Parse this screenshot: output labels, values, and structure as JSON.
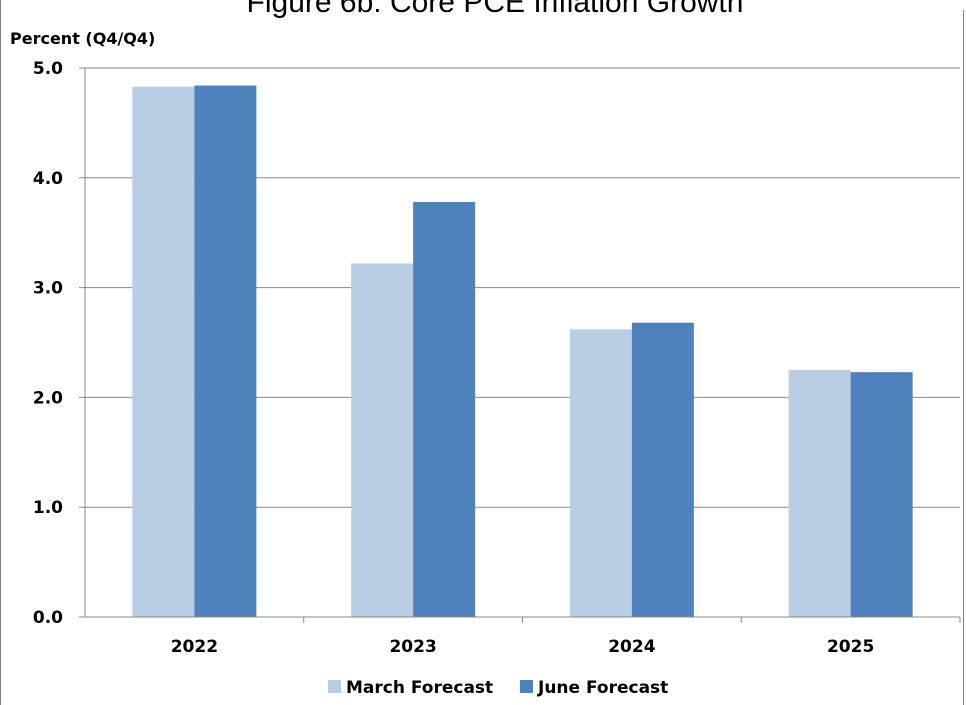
{
  "chart_data": {
    "type": "bar",
    "title": "Figure 6b: Core PCE Inflation Growth",
    "ylabel": "Percent (Q4/Q4)",
    "xlabel": "",
    "ylim": [
      0,
      5
    ],
    "yticks": [
      "0.0",
      "1.0",
      "2.0",
      "3.0",
      "4.0",
      "5.0"
    ],
    "categories": [
      "2022",
      "2023",
      "2024",
      "2025"
    ],
    "series": [
      {
        "name": "March Forecast",
        "color": "#b9cde5",
        "values": [
          4.83,
          3.22,
          2.62,
          2.25
        ]
      },
      {
        "name": "June Forecast",
        "color": "#4f81bd",
        "values": [
          4.84,
          3.78,
          2.68,
          2.23
        ]
      }
    ],
    "grid": true,
    "legend": "bottom"
  }
}
